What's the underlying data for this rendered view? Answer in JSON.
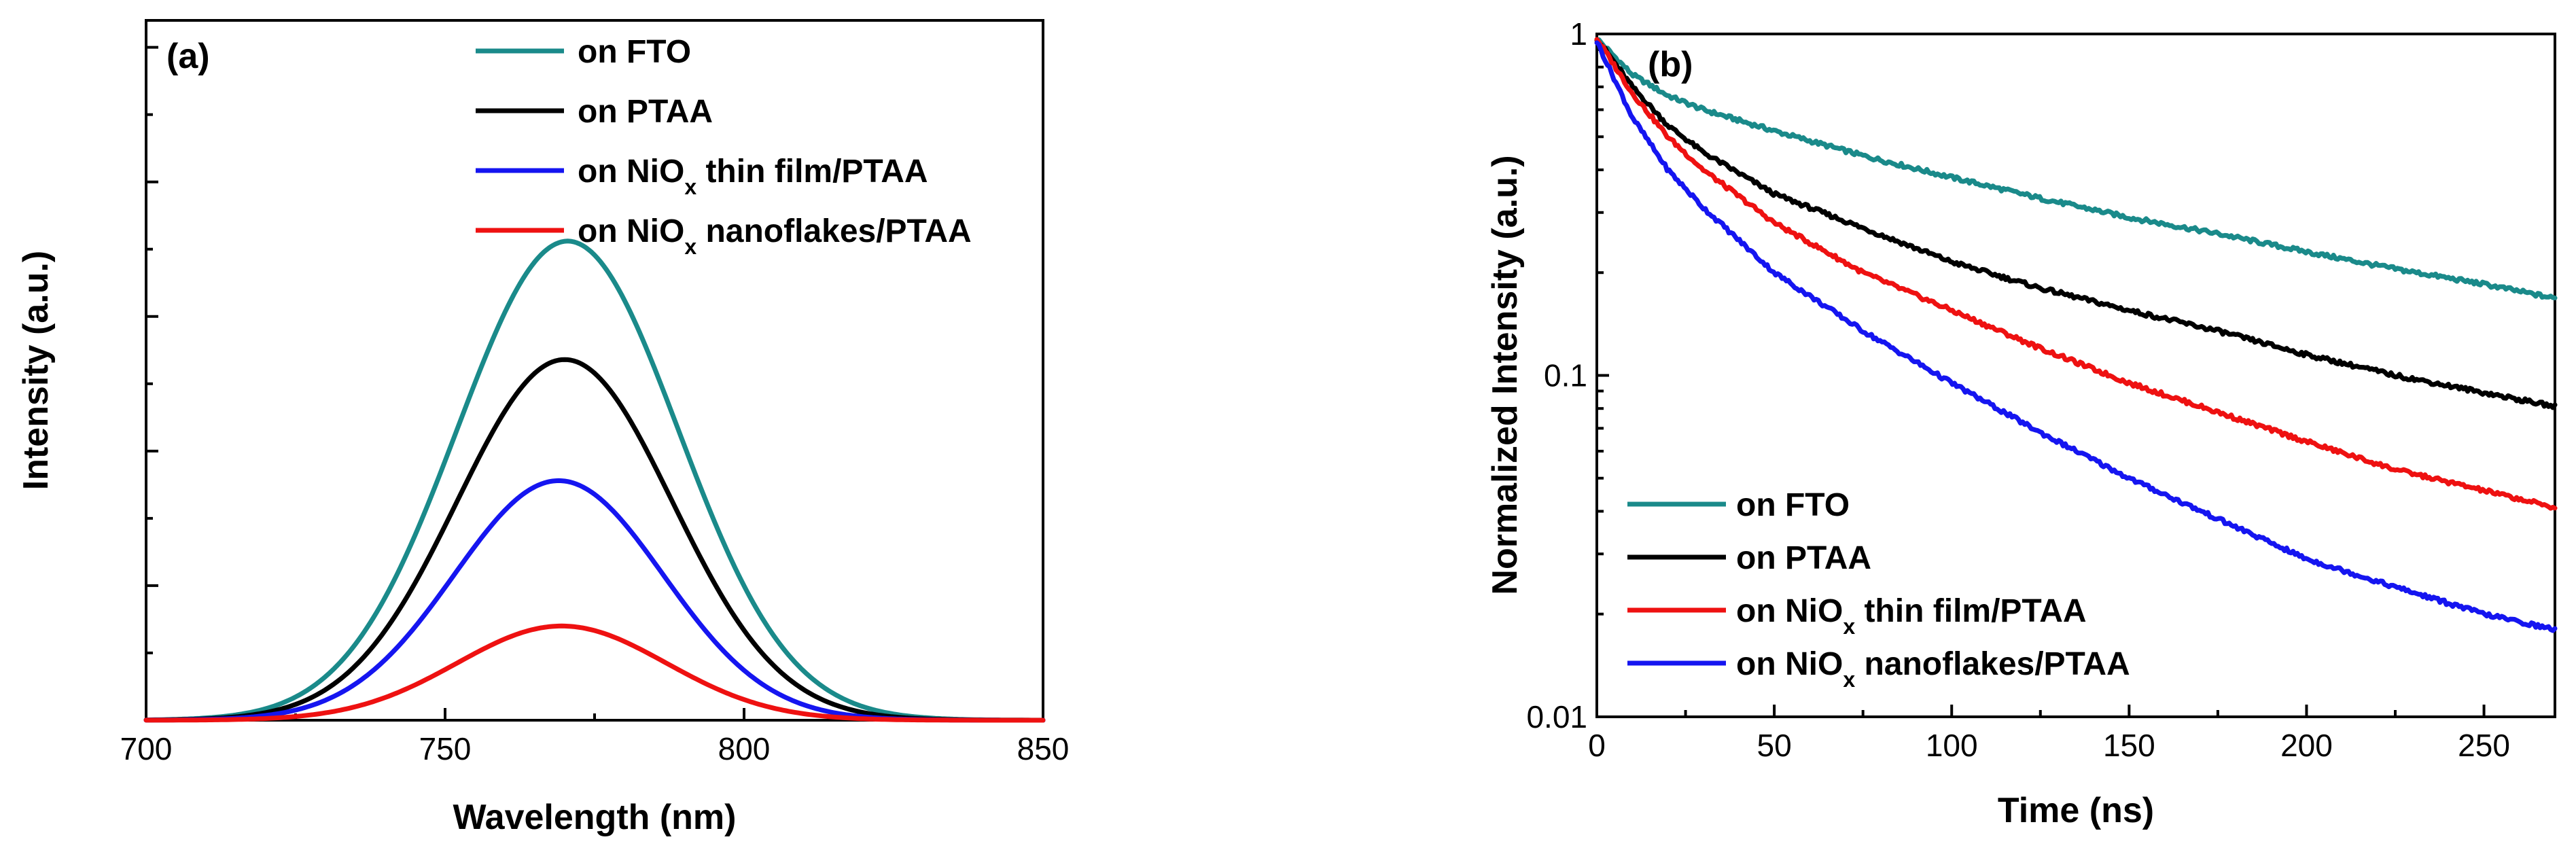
{
  "chart_data": [
    {
      "type": "line",
      "panel_label": "(a)",
      "xlabel": "Wavelength (nm)",
      "ylabel": "Intensity (a.u.)",
      "xlim": [
        700,
        850
      ],
      "ylim": [
        0,
        1.3
      ],
      "xticks": [
        700,
        750,
        800,
        850
      ],
      "x_tick_labels": [
        "700",
        "750",
        "800",
        "850"
      ],
      "yticks": [
        0.25,
        0.5,
        0.75,
        1.0,
        1.25
      ],
      "y_tick_labels": [],
      "legend_position": "top-center",
      "series": [
        {
          "name": "on FTO",
          "name_base": "on FTO",
          "name_sub": "",
          "name_tail": "",
          "color": "#1a8a8a",
          "peak": 0.89,
          "center": 770.5,
          "sigma": 18.5
        },
        {
          "name": "on PTAA",
          "name_base": "on PTAA",
          "name_sub": "",
          "name_tail": "",
          "color": "#000000",
          "peak": 0.67,
          "center": 770.0,
          "sigma": 18.0
        },
        {
          "name": "on NiOx thin film/PTAA",
          "name_base": "on NiO",
          "name_sub": "x",
          "name_tail": " thin film/PTAA",
          "color": "#1515f0",
          "peak": 0.445,
          "center": 769.0,
          "sigma": 17.5
        },
        {
          "name": "on NiOx nanoflakes/PTAA",
          "name_base": "on NiO",
          "name_sub": "x",
          "name_tail": " nanoflakes/PTAA",
          "color": "#ee1111",
          "peak": 0.175,
          "center": 769.5,
          "sigma": 17.5
        }
      ]
    },
    {
      "type": "line",
      "panel_label": "(b)",
      "xlabel": "Time (ns)",
      "ylabel": "Normalized Intensity (a.u.)",
      "xlim": [
        0,
        270
      ],
      "ylim": [
        0.01,
        1
      ],
      "yscale": "log",
      "xticks": [
        0,
        50,
        100,
        150,
        200,
        250
      ],
      "x_tick_labels": [
        "0",
        "50",
        "100",
        "150",
        "200",
        "250"
      ],
      "yticks": [
        0.01,
        0.1,
        1
      ],
      "y_tick_labels": [
        "0.01",
        "0.1",
        "1"
      ],
      "legend_position": "bottom-left",
      "series": [
        {
          "name": "on FTO",
          "name_base": "on FTO",
          "name_sub": "",
          "name_tail": "",
          "color": "#1a8a8a",
          "t": [
            0,
            10,
            20,
            30,
            50,
            75,
            100,
            125,
            150,
            175,
            200,
            225,
            250,
            270
          ],
          "y": [
            0.97,
            0.76,
            0.66,
            0.6,
            0.52,
            0.44,
            0.38,
            0.33,
            0.29,
            0.26,
            0.23,
            0.205,
            0.185,
            0.168
          ]
        },
        {
          "name": "on PTAA",
          "name_base": "on PTAA",
          "name_sub": "",
          "name_tail": "",
          "color": "#000000",
          "t": [
            0,
            10,
            20,
            30,
            50,
            75,
            100,
            125,
            150,
            175,
            200,
            225,
            250,
            270
          ],
          "y": [
            0.97,
            0.7,
            0.54,
            0.45,
            0.34,
            0.27,
            0.215,
            0.18,
            0.155,
            0.135,
            0.115,
            0.1,
            0.089,
            0.081
          ]
        },
        {
          "name": "on NiOx thin film/PTAA",
          "name_base": "on NiO",
          "name_sub": "x",
          "name_tail": " thin film/PTAA",
          "color": "#ee1111",
          "t": [
            0,
            10,
            20,
            30,
            50,
            75,
            100,
            125,
            150,
            175,
            200,
            225,
            250,
            270
          ],
          "y": [
            0.97,
            0.67,
            0.5,
            0.4,
            0.28,
            0.2,
            0.155,
            0.12,
            0.095,
            0.078,
            0.064,
            0.053,
            0.046,
            0.041
          ]
        },
        {
          "name": "on NiOx nanoflakes/PTAA",
          "name_base": "on NiO",
          "name_sub": "x",
          "name_tail": " nanoflakes/PTAA",
          "color": "#1515f0",
          "t": [
            0,
            10,
            20,
            30,
            50,
            75,
            100,
            125,
            150,
            175,
            200,
            225,
            250,
            270
          ],
          "y": [
            0.95,
            0.57,
            0.4,
            0.31,
            0.2,
            0.135,
            0.095,
            0.068,
            0.05,
            0.038,
            0.029,
            0.024,
            0.02,
            0.018
          ]
        }
      ]
    }
  ]
}
